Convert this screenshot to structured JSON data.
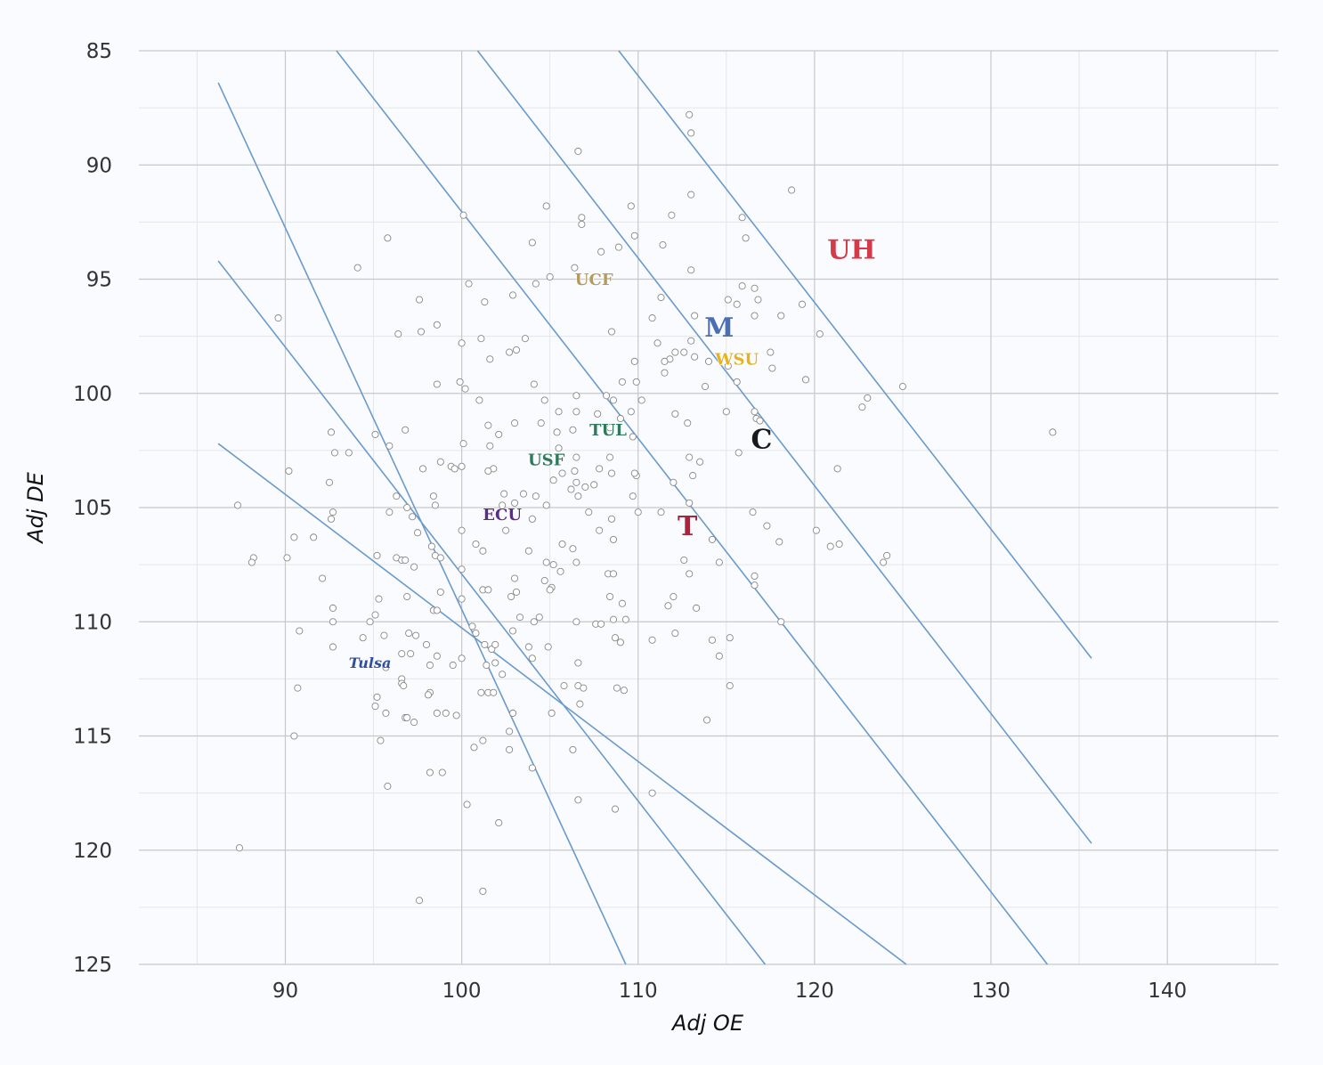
{
  "chart_data": {
    "type": "scatter",
    "xlabel": "Adj OE",
    "ylabel": "Adj DE",
    "xlim": [
      81.7,
      146.3
    ],
    "ylim": [
      125,
      85
    ],
    "y_inverted": true,
    "grid": true,
    "x_ticks": [
      90,
      100,
      110,
      120,
      130,
      140
    ],
    "y_ticks": [
      85,
      90,
      95,
      100,
      105,
      110,
      115,
      120,
      125
    ],
    "colors": {
      "diagonal": "#6a9acb",
      "point_stroke": "#888888",
      "grid_major": "#c8c8c8",
      "grid_minor": "#e4e6ea"
    },
    "diagonal_lines": [
      {
        "x1": 86.2,
        "y1": 86.4,
        "x2": 109.3,
        "y2": 125
      },
      {
        "x1": 86.2,
        "y1": 94.2,
        "x2": 117.2,
        "y2": 125
      },
      {
        "x1": 86.2,
        "y1": 102.2,
        "x2": 125.2,
        "y2": 125
      },
      {
        "x1": 92.9,
        "y1": 85,
        "x2": 133.2,
        "y2": 125
      },
      {
        "x1": 100.9,
        "y1": 85,
        "x2": 135.7,
        "y2": 119.7
      },
      {
        "x1": 108.9,
        "y1": 85,
        "x2": 135.7,
        "y2": 111.6
      }
    ],
    "points": [
      [
        112.9,
        87.8
      ],
      [
        113.0,
        88.6
      ],
      [
        106.6,
        89.4
      ],
      [
        118.7,
        91.1
      ],
      [
        113.0,
        91.3
      ],
      [
        104.8,
        91.8
      ],
      [
        109.6,
        91.8
      ],
      [
        100.1,
        92.2
      ],
      [
        106.8,
        92.3
      ],
      [
        111.9,
        92.2
      ],
      [
        115.9,
        92.3
      ],
      [
        106.8,
        92.6
      ],
      [
        109.8,
        93.1
      ],
      [
        95.8,
        93.2
      ],
      [
        116.1,
        93.2
      ],
      [
        104.0,
        93.4
      ],
      [
        111.4,
        93.5
      ],
      [
        108.9,
        93.6
      ],
      [
        107.9,
        93.8
      ],
      [
        106.4,
        94.5
      ],
      [
        94.1,
        94.5
      ],
      [
        113.0,
        94.6
      ],
      [
        105.0,
        94.9
      ],
      [
        104.2,
        95.2
      ],
      [
        100.4,
        95.2
      ],
      [
        115.9,
        95.3
      ],
      [
        116.6,
        95.4
      ],
      [
        102.9,
        95.7
      ],
      [
        115.1,
        95.9
      ],
      [
        111.3,
        95.8
      ],
      [
        97.6,
        95.9
      ],
      [
        101.3,
        96.0
      ],
      [
        115.6,
        96.1
      ],
      [
        116.8,
        95.9
      ],
      [
        119.3,
        96.1
      ],
      [
        113.2,
        96.6
      ],
      [
        110.8,
        96.7
      ],
      [
        116.6,
        96.6
      ],
      [
        118.1,
        96.6
      ],
      [
        89.6,
        96.7
      ],
      [
        98.6,
        97.0
      ],
      [
        96.4,
        97.4
      ],
      [
        97.7,
        97.3
      ],
      [
        120.3,
        97.4
      ],
      [
        108.5,
        97.3
      ],
      [
        101.1,
        97.6
      ],
      [
        103.6,
        97.6
      ],
      [
        100.0,
        97.8
      ],
      [
        113.0,
        97.7
      ],
      [
        111.1,
        97.8
      ],
      [
        112.6,
        98.2
      ],
      [
        102.7,
        98.2
      ],
      [
        103.1,
        98.1
      ],
      [
        117.5,
        98.2
      ],
      [
        112.1,
        98.2
      ],
      [
        111.8,
        98.5
      ],
      [
        113.2,
        98.4
      ],
      [
        111.5,
        98.6
      ],
      [
        109.8,
        98.6
      ],
      [
        101.6,
        98.5
      ],
      [
        114.0,
        98.6
      ],
      [
        115.1,
        98.8
      ],
      [
        117.6,
        98.9
      ],
      [
        111.5,
        99.1
      ],
      [
        115.6,
        99.5
      ],
      [
        99.9,
        99.5
      ],
      [
        109.1,
        99.5
      ],
      [
        113.8,
        99.7
      ],
      [
        109.9,
        99.5
      ],
      [
        98.6,
        99.6
      ],
      [
        100.2,
        99.8
      ],
      [
        104.1,
        99.6
      ],
      [
        119.5,
        99.4
      ],
      [
        125.0,
        99.7
      ],
      [
        101.0,
        100.3
      ],
      [
        106.5,
        100.1
      ],
      [
        104.7,
        100.3
      ],
      [
        108.2,
        100.1
      ],
      [
        108.6,
        100.3
      ],
      [
        110.2,
        100.3
      ],
      [
        123.0,
        100.2
      ],
      [
        122.7,
        100.6
      ],
      [
        115.0,
        100.8
      ],
      [
        116.6,
        100.8
      ],
      [
        105.5,
        100.8
      ],
      [
        109.6,
        100.8
      ],
      [
        106.5,
        100.8
      ],
      [
        112.1,
        100.9
      ],
      [
        107.7,
        100.9
      ],
      [
        116.7,
        101.1
      ],
      [
        116.9,
        101.2
      ],
      [
        109.0,
        101.1
      ],
      [
        101.5,
        101.4
      ],
      [
        103.0,
        101.3
      ],
      [
        104.5,
        101.3
      ],
      [
        112.8,
        101.3
      ],
      [
        108.4,
        101.5
      ],
      [
        106.3,
        101.6
      ],
      [
        133.5,
        101.7
      ],
      [
        96.8,
        101.6
      ],
      [
        92.6,
        101.7
      ],
      [
        95.1,
        101.8
      ],
      [
        105.4,
        101.7
      ],
      [
        102.1,
        101.8
      ],
      [
        109.7,
        101.9
      ],
      [
        101.6,
        102.3
      ],
      [
        100.1,
        102.2
      ],
      [
        95.9,
        102.3
      ],
      [
        105.5,
        102.4
      ],
      [
        92.8,
        102.6
      ],
      [
        93.6,
        102.6
      ],
      [
        115.7,
        102.6
      ],
      [
        108.4,
        102.8
      ],
      [
        112.9,
        102.8
      ],
      [
        106.5,
        102.8
      ],
      [
        113.5,
        103.0
      ],
      [
        98.8,
        103.0
      ],
      [
        99.4,
        103.2
      ],
      [
        99.6,
        103.3
      ],
      [
        100.0,
        103.2
      ],
      [
        101.8,
        103.3
      ],
      [
        101.5,
        103.4
      ],
      [
        97.8,
        103.3
      ],
      [
        90.2,
        103.4
      ],
      [
        107.8,
        103.3
      ],
      [
        106.4,
        103.4
      ],
      [
        109.9,
        103.6
      ],
      [
        121.3,
        103.3
      ],
      [
        113.1,
        103.6
      ],
      [
        105.7,
        103.5
      ],
      [
        108.5,
        103.5
      ],
      [
        109.8,
        103.5
      ],
      [
        105.2,
        103.8
      ],
      [
        106.5,
        103.9
      ],
      [
        106.2,
        104.2
      ],
      [
        107.0,
        104.1
      ],
      [
        107.5,
        104.0
      ],
      [
        112.0,
        103.9
      ],
      [
        92.5,
        103.9
      ],
      [
        102.4,
        104.4
      ],
      [
        103.5,
        104.4
      ],
      [
        104.2,
        104.5
      ],
      [
        106.6,
        104.5
      ],
      [
        109.7,
        104.5
      ],
      [
        98.4,
        104.5
      ],
      [
        96.3,
        104.5
      ],
      [
        98.5,
        104.9
      ],
      [
        104.8,
        104.9
      ],
      [
        102.3,
        104.9
      ],
      [
        103.0,
        104.8
      ],
      [
        112.9,
        104.8
      ],
      [
        87.3,
        104.9
      ],
      [
        96.9,
        105.0
      ],
      [
        107.2,
        105.2
      ],
      [
        110.0,
        105.2
      ],
      [
        111.3,
        105.2
      ],
      [
        116.5,
        105.2
      ],
      [
        92.7,
        105.2
      ],
      [
        95.9,
        105.2
      ],
      [
        108.5,
        105.5
      ],
      [
        97.2,
        105.4
      ],
      [
        92.6,
        105.5
      ],
      [
        104.0,
        105.5
      ],
      [
        117.3,
        105.8
      ],
      [
        107.8,
        106.0
      ],
      [
        97.5,
        106.1
      ],
      [
        100.0,
        106.0
      ],
      [
        102.5,
        106.0
      ],
      [
        120.1,
        106.0
      ],
      [
        90.5,
        106.3
      ],
      [
        91.6,
        106.3
      ],
      [
        114.2,
        106.4
      ],
      [
        118.0,
        106.5
      ],
      [
        108.6,
        106.4
      ],
      [
        98.3,
        106.7
      ],
      [
        100.8,
        106.6
      ],
      [
        105.7,
        106.6
      ],
      [
        121.4,
        106.6
      ],
      [
        120.9,
        106.7
      ],
      [
        106.3,
        106.8
      ],
      [
        101.2,
        106.9
      ],
      [
        103.8,
        106.9
      ],
      [
        98.5,
        107.1
      ],
      [
        98.8,
        107.2
      ],
      [
        88.2,
        107.2
      ],
      [
        96.3,
        107.2
      ],
      [
        96.6,
        107.3
      ],
      [
        95.2,
        107.1
      ],
      [
        124.1,
        107.1
      ],
      [
        90.1,
        107.2
      ],
      [
        112.6,
        107.3
      ],
      [
        96.8,
        107.3
      ],
      [
        104.8,
        107.4
      ],
      [
        105.2,
        107.5
      ],
      [
        106.5,
        107.4
      ],
      [
        88.1,
        107.4
      ],
      [
        114.6,
        107.4
      ],
      [
        123.9,
        107.4
      ],
      [
        97.3,
        107.6
      ],
      [
        100.0,
        107.7
      ],
      [
        105.6,
        107.8
      ],
      [
        108.3,
        107.9
      ],
      [
        108.6,
        107.9
      ],
      [
        112.9,
        107.9
      ],
      [
        116.6,
        108.0
      ],
      [
        92.1,
        108.1
      ],
      [
        103.0,
        108.1
      ],
      [
        104.7,
        108.2
      ],
      [
        105.1,
        108.5
      ],
      [
        116.6,
        108.4
      ],
      [
        105.0,
        108.6
      ],
      [
        101.2,
        108.6
      ],
      [
        101.5,
        108.6
      ],
      [
        98.8,
        108.7
      ],
      [
        103.1,
        108.7
      ],
      [
        96.9,
        108.9
      ],
      [
        102.8,
        108.9
      ],
      [
        108.4,
        108.9
      ],
      [
        112.0,
        108.9
      ],
      [
        100.0,
        109.0
      ],
      [
        95.3,
        109.0
      ],
      [
        109.1,
        109.2
      ],
      [
        111.7,
        109.3
      ],
      [
        113.3,
        109.4
      ],
      [
        92.7,
        109.4
      ],
      [
        98.4,
        109.5
      ],
      [
        98.6,
        109.5
      ],
      [
        95.1,
        109.7
      ],
      [
        104.4,
        109.8
      ],
      [
        108.6,
        109.9
      ],
      [
        109.3,
        109.9
      ],
      [
        103.3,
        109.8
      ],
      [
        106.5,
        110.0
      ],
      [
        107.6,
        110.1
      ],
      [
        107.9,
        110.1
      ],
      [
        118.1,
        110.0
      ],
      [
        92.7,
        110.0
      ],
      [
        104.1,
        110.0
      ],
      [
        94.8,
        110.0
      ],
      [
        100.6,
        110.2
      ],
      [
        102.9,
        110.4
      ],
      [
        100.8,
        110.5
      ],
      [
        112.1,
        110.5
      ],
      [
        90.8,
        110.4
      ],
      [
        95.6,
        110.6
      ],
      [
        97.0,
        110.5
      ],
      [
        97.4,
        110.6
      ],
      [
        94.4,
        110.7
      ],
      [
        108.7,
        110.7
      ],
      [
        114.2,
        110.8
      ],
      [
        115.2,
        110.7
      ],
      [
        109.0,
        110.9
      ],
      [
        110.8,
        110.8
      ],
      [
        101.3,
        111.0
      ],
      [
        101.7,
        111.2
      ],
      [
        101.9,
        111.0
      ],
      [
        103.8,
        111.1
      ],
      [
        104.9,
        111.1
      ],
      [
        92.7,
        111.1
      ],
      [
        98.0,
        111.0
      ],
      [
        98.6,
        111.5
      ],
      [
        96.6,
        111.4
      ],
      [
        97.1,
        111.4
      ],
      [
        100.0,
        111.6
      ],
      [
        104.0,
        111.6
      ],
      [
        114.6,
        111.5
      ],
      [
        101.9,
        111.8
      ],
      [
        98.2,
        111.9
      ],
      [
        99.5,
        111.9
      ],
      [
        106.6,
        111.8
      ],
      [
        101.4,
        111.9
      ],
      [
        95.7,
        112.0
      ],
      [
        102.3,
        112.3
      ],
      [
        96.6,
        112.5
      ],
      [
        96.6,
        112.7
      ],
      [
        96.7,
        112.8
      ],
      [
        105.8,
        112.8
      ],
      [
        106.6,
        112.8
      ],
      [
        106.9,
        112.9
      ],
      [
        108.8,
        112.9
      ],
      [
        109.2,
        113.0
      ],
      [
        115.2,
        112.8
      ],
      [
        90.7,
        112.9
      ],
      [
        98.2,
        113.1
      ],
      [
        98.1,
        113.2
      ],
      [
        101.1,
        113.1
      ],
      [
        101.5,
        113.1
      ],
      [
        101.8,
        113.1
      ],
      [
        95.2,
        113.3
      ],
      [
        106.7,
        113.6
      ],
      [
        95.1,
        113.7
      ],
      [
        95.7,
        114.0
      ],
      [
        98.6,
        114.0
      ],
      [
        99.1,
        114.0
      ],
      [
        99.7,
        114.1
      ],
      [
        102.9,
        114.0
      ],
      [
        105.1,
        114.0
      ],
      [
        96.8,
        114.2
      ],
      [
        96.9,
        114.2
      ],
      [
        97.3,
        114.4
      ],
      [
        113.9,
        114.3
      ],
      [
        102.7,
        114.8
      ],
      [
        90.5,
        115.0
      ],
      [
        95.4,
        115.2
      ],
      [
        101.2,
        115.2
      ],
      [
        100.7,
        115.5
      ],
      [
        102.7,
        115.6
      ],
      [
        106.3,
        115.6
      ],
      [
        104.0,
        116.4
      ],
      [
        98.2,
        116.6
      ],
      [
        98.9,
        116.6
      ],
      [
        95.8,
        117.2
      ],
      [
        110.8,
        117.5
      ],
      [
        106.6,
        117.8
      ],
      [
        108.7,
        118.2
      ],
      [
        100.3,
        118.0
      ],
      [
        102.1,
        118.8
      ],
      [
        87.4,
        119.9
      ],
      [
        101.2,
        121.8
      ],
      [
        97.6,
        122.2
      ]
    ],
    "teams": [
      {
        "name": "UH",
        "x": 122.1,
        "y": 93.7,
        "color": "#d33a4a"
      },
      {
        "name": "UCF",
        "x": 107.5,
        "y": 95.0,
        "color": "#b59a5a"
      },
      {
        "name": "M",
        "x": 114.6,
        "y": 97.1,
        "color": "#4a6fb5"
      },
      {
        "name": "WSU",
        "x": 115.6,
        "y": 98.5,
        "color": "#e5b31f"
      },
      {
        "name": "C",
        "x": 117.0,
        "y": 102.0,
        "color": "#1a1a1a"
      },
      {
        "name": "TUL",
        "x": 108.3,
        "y": 101.6,
        "color": "#2e7a5a"
      },
      {
        "name": "USF",
        "x": 104.8,
        "y": 102.9,
        "color": "#2e7a5a"
      },
      {
        "name": "ECU",
        "x": 102.3,
        "y": 105.3,
        "color": "#5b2d8a"
      },
      {
        "name": "T",
        "x": 112.8,
        "y": 105.8,
        "color": "#a8263d"
      },
      {
        "name": "Tulsa",
        "x": 94.8,
        "y": 111.8,
        "color": "#2e4f9c"
      }
    ]
  }
}
